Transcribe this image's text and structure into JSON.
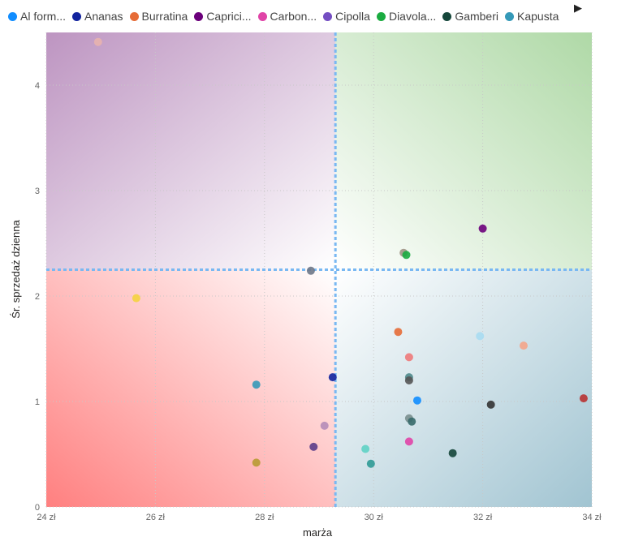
{
  "legend": {
    "items": [
      {
        "name": "Al form...",
        "color": "#118DFF"
      },
      {
        "name": "Ananas",
        "color": "#12239E"
      },
      {
        "name": "Burratina",
        "color": "#E66C37"
      },
      {
        "name": "Caprici...",
        "color": "#6B007B"
      },
      {
        "name": "Carbon...",
        "color": "#E044A7"
      },
      {
        "name": "Cipolla",
        "color": "#744EC2"
      },
      {
        "name": "Diavola...",
        "color": "#1AAB40"
      },
      {
        "name": "Gamberi",
        "color": "#15463A"
      },
      {
        "name": "Kapusta",
        "color": "#3599B8"
      }
    ],
    "next_icon": "play-right-icon"
  },
  "chart_data": {
    "type": "scatter",
    "xlabel": "marża",
    "ylabel": "Śr. sprzedaż dzienna",
    "xlim": [
      24,
      34
    ],
    "ylim": [
      0,
      4.5
    ],
    "x_ticks": [
      {
        "value": 24,
        "label": "24 zł"
      },
      {
        "value": 26,
        "label": "26 zł"
      },
      {
        "value": 28,
        "label": "28 zł"
      },
      {
        "value": 30,
        "label": "30 zł"
      },
      {
        "value": 32,
        "label": "32 zł"
      },
      {
        "value": 34,
        "label": "34 zł"
      }
    ],
    "y_ticks": [
      {
        "value": 0,
        "label": "0"
      },
      {
        "value": 1,
        "label": "1"
      },
      {
        "value": 2,
        "label": "2"
      },
      {
        "value": 3,
        "label": "3"
      },
      {
        "value": 4,
        "label": "4"
      }
    ],
    "x_reference": 29.3,
    "y_reference": 2.25,
    "grid": true,
    "legend_position": "top",
    "quadrant_colors": {
      "top_left": "#7B2A83",
      "top_right": "#4DAA3A",
      "bottom_left": "#FF3B3B",
      "bottom_right": "#2E7C9A"
    },
    "points": [
      {
        "x": 24.95,
        "y": 4.41,
        "color": "#E8B2AE"
      },
      {
        "x": 25.65,
        "y": 1.98,
        "color": "#F5D33F"
      },
      {
        "x": 27.85,
        "y": 1.16,
        "color": "#3599B8"
      },
      {
        "x": 27.85,
        "y": 0.42,
        "color": "#B89B33"
      },
      {
        "x": 28.85,
        "y": 2.24,
        "color": "#6E7787"
      },
      {
        "x": 28.9,
        "y": 0.57,
        "color": "#5B3D8A"
      },
      {
        "x": 29.1,
        "y": 0.77,
        "color": "#B58CB8"
      },
      {
        "x": 29.25,
        "y": 1.23,
        "color": "#12239E"
      },
      {
        "x": 29.85,
        "y": 0.55,
        "color": "#5FD1C5"
      },
      {
        "x": 29.95,
        "y": 0.41,
        "color": "#2F9A96"
      },
      {
        "x": 30.45,
        "y": 1.66,
        "color": "#E66C37"
      },
      {
        "x": 30.55,
        "y": 2.41,
        "color": "#9E9484"
      },
      {
        "x": 30.6,
        "y": 2.39,
        "color": "#1AAB40"
      },
      {
        "x": 30.65,
        "y": 1.42,
        "color": "#EE7A7A"
      },
      {
        "x": 30.65,
        "y": 1.23,
        "color": "#4F8A8B"
      },
      {
        "x": 30.65,
        "y": 1.2,
        "color": "#555555"
      },
      {
        "x": 30.65,
        "y": 0.84,
        "color": "#7A8F8F"
      },
      {
        "x": 30.7,
        "y": 0.81,
        "color": "#36696A"
      },
      {
        "x": 30.65,
        "y": 0.62,
        "color": "#E044A7"
      },
      {
        "x": 30.8,
        "y": 1.01,
        "color": "#118DFF"
      },
      {
        "x": 31.45,
        "y": 0.51,
        "color": "#15463A"
      },
      {
        "x": 31.95,
        "y": 1.62,
        "color": "#A9DCF2"
      },
      {
        "x": 32.0,
        "y": 2.64,
        "color": "#6B007B"
      },
      {
        "x": 32.15,
        "y": 0.97,
        "color": "#333333"
      },
      {
        "x": 32.75,
        "y": 1.53,
        "color": "#F4A58A"
      },
      {
        "x": 33.85,
        "y": 1.03,
        "color": "#B83232"
      }
    ]
  }
}
